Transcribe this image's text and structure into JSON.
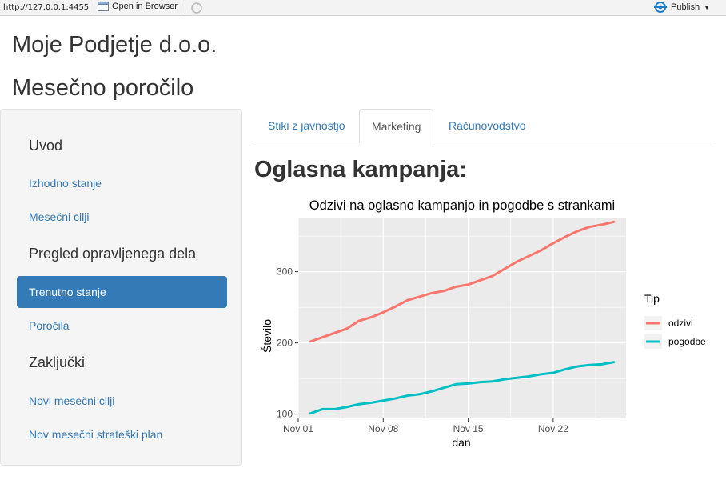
{
  "toolbar": {
    "url": "http://127.0.0.1:4455",
    "open_in_browser": "Open in Browser",
    "publish": "Publish"
  },
  "header": {
    "company": "Moje Podjetje d.o.o.",
    "report_title": "Mesečno poročilo"
  },
  "sidebar": {
    "items": [
      {
        "label": "Uvod",
        "kind": "heading"
      },
      {
        "label": "Izhodno stanje",
        "kind": "link"
      },
      {
        "label": "Mesečni cilji",
        "kind": "link"
      },
      {
        "label": "Pregled opravljenega dela",
        "kind": "heading"
      },
      {
        "label": "Trenutno stanje",
        "kind": "link",
        "active": true
      },
      {
        "label": "Poročila",
        "kind": "link"
      },
      {
        "label": "Zaključki",
        "kind": "heading"
      },
      {
        "label": "Novi mesečni cilji",
        "kind": "link"
      },
      {
        "label": "Nov mesečni strateški plan",
        "kind": "link"
      }
    ]
  },
  "tabs": [
    {
      "label": "Stiki z javnostjo",
      "active": false
    },
    {
      "label": "Marketing",
      "active": true
    },
    {
      "label": "Računovodstvo",
      "active": false
    }
  ],
  "main": {
    "section_title": "Oglasna kampanja:"
  },
  "colors": {
    "accent": "#337ab7",
    "odzivi": "#F8766D",
    "pogodbe": "#00BFC4",
    "panel_bg": "#EBEBEB"
  },
  "chart_data": {
    "type": "line",
    "title": "Odzivi na oglasno kampanjo in pogodbe s strankami",
    "xlabel": "dan",
    "ylabel": "Število",
    "legend_title": "Tip",
    "legend_position": "right",
    "x_start": "Nov 02",
    "x_ticks": [
      "Nov 01",
      "Nov 08",
      "Nov 15",
      "Nov 22"
    ],
    "y_ticks": [
      100,
      200,
      300
    ],
    "xlim": [
      "Nov 01",
      "Nov 28"
    ],
    "ylim": [
      94,
      376
    ],
    "series": [
      {
        "name": "odzivi",
        "color": "#F8766D",
        "x": [
          "Nov 02",
          "Nov 03",
          "Nov 04",
          "Nov 05",
          "Nov 06",
          "Nov 07",
          "Nov 08",
          "Nov 09",
          "Nov 10",
          "Nov 11",
          "Nov 12",
          "Nov 13",
          "Nov 14",
          "Nov 15",
          "Nov 16",
          "Nov 17",
          "Nov 18",
          "Nov 19",
          "Nov 20",
          "Nov 21",
          "Nov 22",
          "Nov 23",
          "Nov 24",
          "Nov 25",
          "Nov 26",
          "Nov 27"
        ],
        "values": [
          202,
          208,
          214,
          220,
          231,
          236,
          243,
          251,
          260,
          265,
          270,
          273,
          279,
          282,
          288,
          294,
          304,
          314,
          322,
          330,
          340,
          349,
          357,
          363,
          366,
          370
        ]
      },
      {
        "name": "pogodbe",
        "color": "#00BFC4",
        "x": [
          "Nov 02",
          "Nov 03",
          "Nov 04",
          "Nov 05",
          "Nov 06",
          "Nov 07",
          "Nov 08",
          "Nov 09",
          "Nov 10",
          "Nov 11",
          "Nov 12",
          "Nov 13",
          "Nov 14",
          "Nov 15",
          "Nov 16",
          "Nov 17",
          "Nov 18",
          "Nov 19",
          "Nov 20",
          "Nov 21",
          "Nov 22",
          "Nov 23",
          "Nov 24",
          "Nov 25",
          "Nov 26",
          "Nov 27"
        ],
        "values": [
          101,
          107,
          107,
          110,
          114,
          116,
          119,
          122,
          126,
          128,
          132,
          137,
          142,
          143,
          145,
          146,
          149,
          151,
          153,
          156,
          158,
          163,
          167,
          169,
          170,
          173
        ]
      }
    ],
    "grid": true
  }
}
